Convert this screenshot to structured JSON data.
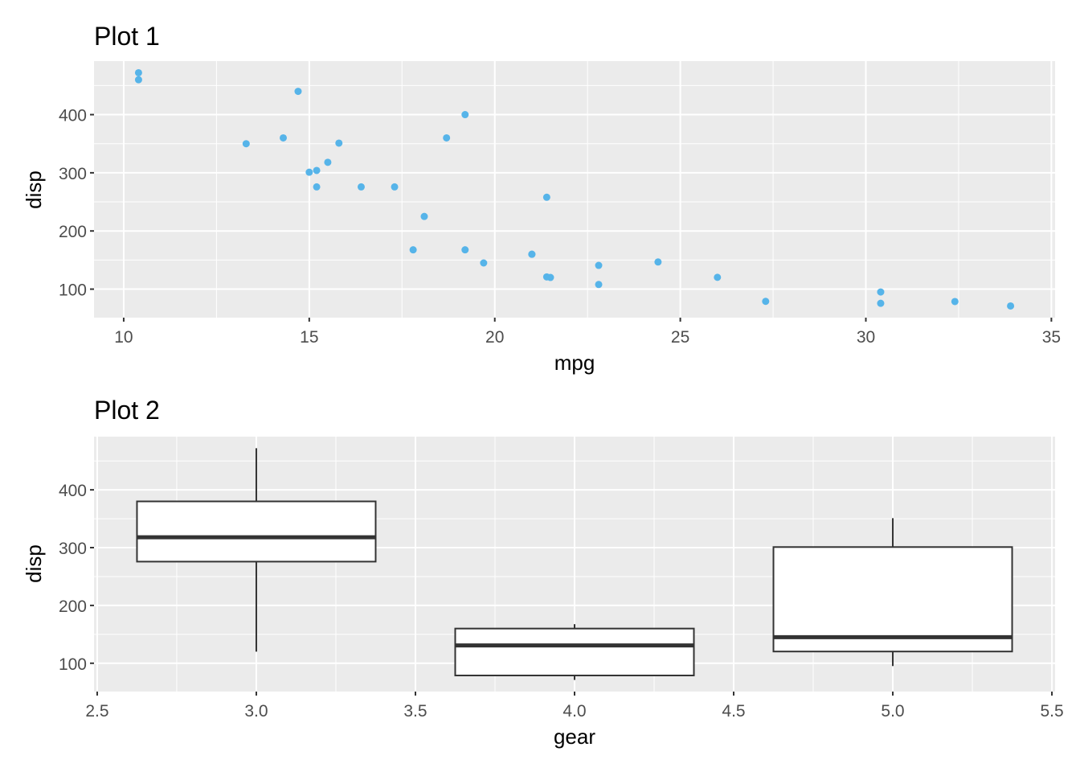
{
  "colors": {
    "panel": "#EBEBEB",
    "grid": "#FFFFFF",
    "point": "#56B4E9",
    "box_line": "#333333",
    "tick_text": "#4D4D4D"
  },
  "chart_data": [
    {
      "type": "scatter",
      "title": "Plot 1",
      "xlabel": "mpg",
      "ylabel": "disp",
      "xlim": [
        9.2,
        35.1
      ],
      "ylim": [
        51,
        492
      ],
      "xticks": [
        10,
        15,
        20,
        25,
        30,
        35
      ],
      "yticks": [
        100,
        200,
        300,
        400
      ],
      "grid": true,
      "points": [
        [
          21.0,
          160
        ],
        [
          21.0,
          160
        ],
        [
          22.8,
          108
        ],
        [
          21.4,
          258
        ],
        [
          18.7,
          360
        ],
        [
          18.1,
          225
        ],
        [
          14.3,
          360
        ],
        [
          24.4,
          146.7
        ],
        [
          22.8,
          140.8
        ],
        [
          19.2,
          167.6
        ],
        [
          17.8,
          167.6
        ],
        [
          16.4,
          275.8
        ],
        [
          17.3,
          275.8
        ],
        [
          15.2,
          275.8
        ],
        [
          10.4,
          472
        ],
        [
          10.4,
          460
        ],
        [
          14.7,
          440
        ],
        [
          32.4,
          78.7
        ],
        [
          30.4,
          75.7
        ],
        [
          33.9,
          71.1
        ],
        [
          21.5,
          120.1
        ],
        [
          15.5,
          318
        ],
        [
          15.2,
          304
        ],
        [
          13.3,
          350
        ],
        [
          19.2,
          400
        ],
        [
          27.3,
          79
        ],
        [
          26.0,
          120.3
        ],
        [
          30.4,
          95.1
        ],
        [
          15.8,
          351
        ],
        [
          19.7,
          145
        ],
        [
          15.0,
          301
        ],
        [
          21.4,
          121
        ]
      ]
    },
    {
      "type": "box",
      "title": "Plot 2",
      "xlabel": "gear",
      "ylabel": "disp",
      "xlim": [
        2.49,
        5.51
      ],
      "ylim": [
        51,
        492
      ],
      "xticks": [
        "2.5",
        "3.0",
        "3.5",
        "4.0",
        "4.5",
        "5.0",
        "5.5"
      ],
      "yticks": [
        100,
        200,
        300,
        400
      ],
      "grid": true,
      "box_width": 0.75,
      "boxes": [
        {
          "x": 3,
          "min": 120.1,
          "q1": 275.8,
          "median": 318,
          "q3": 380,
          "max": 472
        },
        {
          "x": 4,
          "min": 71.1,
          "q1": 78.85,
          "median": 130.9,
          "q3": 160,
          "max": 167.6
        },
        {
          "x": 5,
          "min": 95.1,
          "q1": 120.3,
          "median": 145,
          "q3": 301,
          "max": 351
        }
      ]
    }
  ]
}
